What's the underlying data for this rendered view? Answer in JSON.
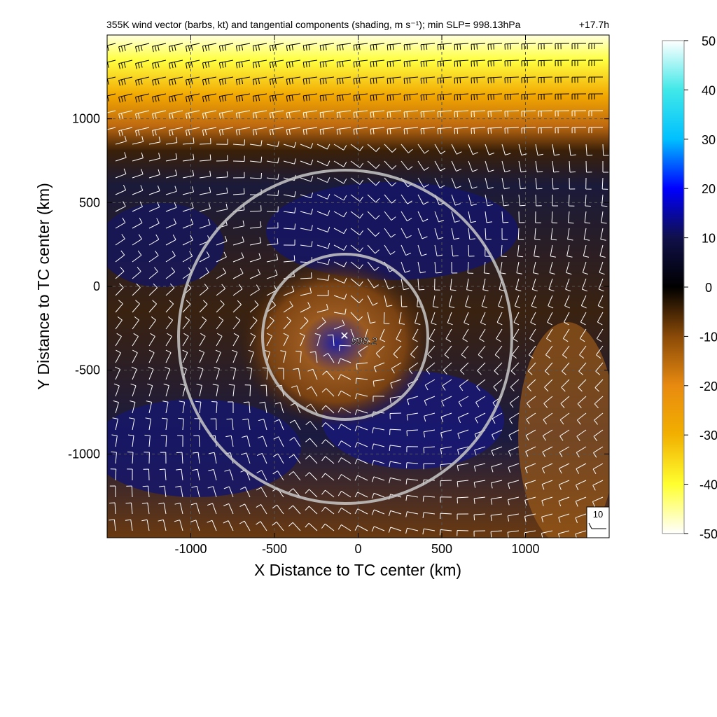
{
  "chart_data": {
    "type": "heatmap",
    "title": "355K wind vector (barbs, kt) and tangential components (shading, m s⁻¹); min SLP= 998.13hPa",
    "lead_time": "+17.7h",
    "xlabel": "X Distance to TC center (km)",
    "ylabel": "Y Distance to TC center (km)",
    "xlim": [
      -1500,
      1500
    ],
    "ylim": [
      -1500,
      1500
    ],
    "x_ticks": [
      -1000,
      -500,
      0,
      500,
      1000
    ],
    "x_tick_labels": [
      "-1000",
      "-500",
      "0",
      "500",
      "1000"
    ],
    "y_ticks": [
      1000,
      500,
      0,
      -500,
      -1000
    ],
    "y_tick_labels": [
      "1000",
      "500",
      "0",
      "-500",
      "-1000"
    ],
    "grid": true,
    "center": {
      "x": -80,
      "y": -300,
      "label": "998.2"
    },
    "rings_km": [
      250,
      500
    ],
    "colorbar": {
      "min": -50,
      "max": 50,
      "ticks": [
        50,
        40,
        30,
        20,
        10,
        0,
        -10,
        -20,
        -30,
        -40,
        -50
      ],
      "tick_labels": [
        "50",
        "40",
        "30",
        "20",
        "10",
        "0",
        "-10",
        "-20",
        "-30",
        "-40",
        "-50"
      ],
      "colors": [
        "#ffffff",
        "#ffff30",
        "#f2b000",
        "#e88a10",
        "#8a4a08",
        "#000000",
        "#10104a",
        "#0000ff",
        "#00c0ff",
        "#40e8e8",
        "#f0ffff"
      ]
    },
    "reference_barb": {
      "label": "10",
      "speed_kt": 10
    }
  }
}
